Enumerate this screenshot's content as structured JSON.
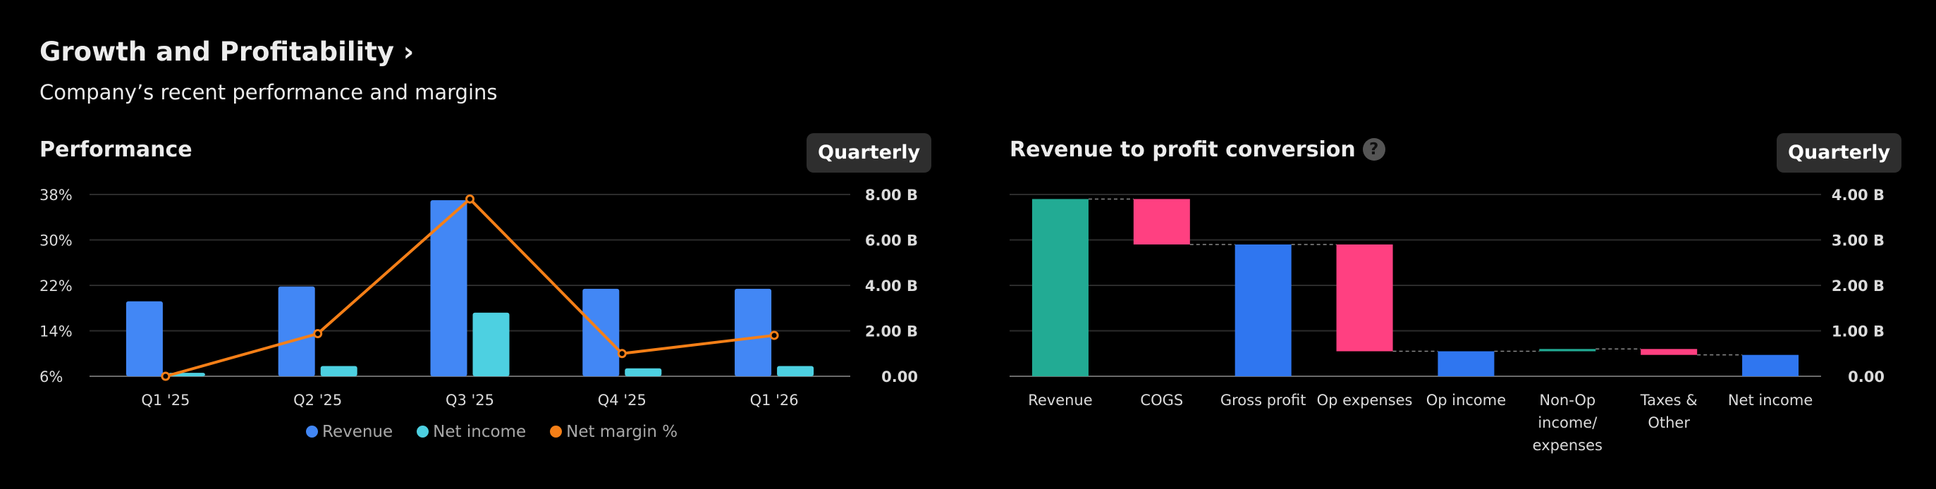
{
  "header": {
    "title": "Growth and Profitability",
    "chevron": "›",
    "subtitle": "Company’s recent performance and margins"
  },
  "colors": {
    "revenue": "#4287f5",
    "net_income": "#4dd0e1",
    "net_margin": "#f57f17",
    "positive": "#22ab94",
    "negative": "#ff4081",
    "subtotal": "#2f76f0"
  },
  "performance": {
    "title": "Performance",
    "period_button": "Quarterly",
    "legend": [
      "Revenue",
      "Net income",
      "Net margin %"
    ]
  },
  "conversion": {
    "title": "Revenue to profit conversion",
    "help_icon": "?",
    "period_button": "Quarterly"
  },
  "chart_data": [
    {
      "type": "bar",
      "title": "Performance",
      "categories": [
        "Q1 '25",
        "Q2 '25",
        "Q3 '25",
        "Q4 '25",
        "Q1 '26"
      ],
      "series": [
        {
          "name": "Revenue",
          "axis": "right",
          "values": [
            3.3,
            3.95,
            7.75,
            3.85,
            3.85
          ]
        },
        {
          "name": "Net income",
          "axis": "right",
          "values": [
            0.15,
            0.45,
            2.8,
            0.35,
            0.45
          ]
        },
        {
          "name": "Net margin %",
          "axis": "left",
          "type": "line",
          "values": [
            6,
            13.5,
            37.2,
            10,
            13.2
          ]
        }
      ],
      "left_axis": {
        "ticks": [
          "38%",
          "30%",
          "22%",
          "14%",
          "6%"
        ],
        "ylim": [
          6,
          38
        ]
      },
      "right_axis": {
        "ticks": [
          "8.00 B",
          "6.00 B",
          "4.00 B",
          "2.00 B",
          "0.00"
        ],
        "ylim": [
          0,
          8
        ]
      },
      "legend": "bottom"
    },
    {
      "type": "waterfall",
      "title": "Revenue to profit conversion",
      "categories": [
        "Revenue",
        "COGS",
        "Gross profit",
        "Op expenses",
        "Op income",
        "Non-Op income/ expenses",
        "Taxes & Other",
        "Net income"
      ],
      "category_lines": [
        [
          "Revenue"
        ],
        [
          "COGS"
        ],
        [
          "Gross profit"
        ],
        [
          "Op expenses"
        ],
        [
          "Op income"
        ],
        [
          "Non-Op",
          "income/",
          "expenses"
        ],
        [
          "Taxes &",
          "Other"
        ],
        [
          "Net income"
        ]
      ],
      "steps": [
        {
          "kind": "total",
          "start": 0,
          "end": 3.9
        },
        {
          "kind": "negative",
          "start": 3.9,
          "end": 2.9
        },
        {
          "kind": "total",
          "start": 0,
          "end": 2.9
        },
        {
          "kind": "negative",
          "start": 2.9,
          "end": 0.55
        },
        {
          "kind": "total",
          "start": 0,
          "end": 0.55
        },
        {
          "kind": "positive",
          "start": 0.55,
          "end": 0.6
        },
        {
          "kind": "negative",
          "start": 0.6,
          "end": 0.47
        },
        {
          "kind": "total",
          "start": 0,
          "end": 0.47
        }
      ],
      "right_axis": {
        "ticks": [
          "4.00 B",
          "3.00 B",
          "2.00 B",
          "1.00 B",
          "0.00"
        ],
        "ylim": [
          0,
          4
        ]
      }
    }
  ]
}
